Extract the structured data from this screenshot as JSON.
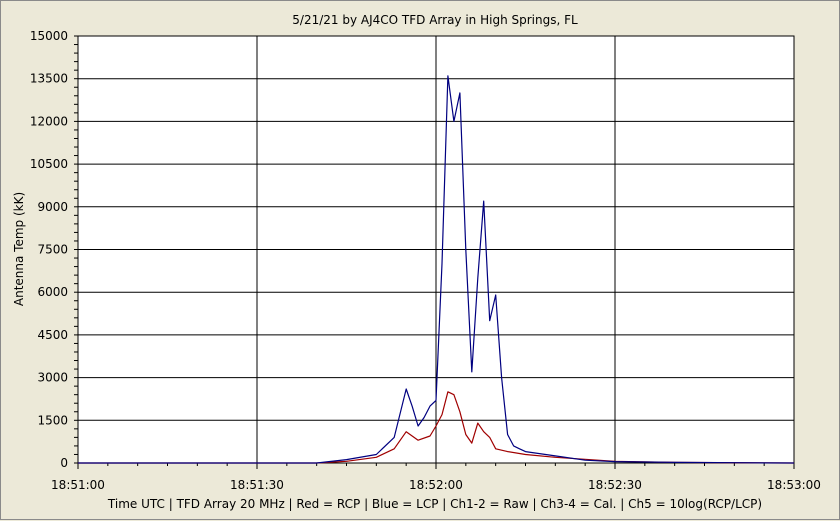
{
  "chart_data": {
    "type": "line",
    "title": "5/21/21  by  AJ4CO TFD Array  in  High Springs, FL",
    "ylabel": "Antenna Temp (kK)",
    "xlabel": "Time UTC | TFD Array 20 MHz | Red = RCP | Blue = LCP | Ch1-2 = Raw | Ch3-4 = Cal. | Ch5 = 10log(RCP/LCP)",
    "ylim": [
      0,
      15000
    ],
    "xlim": [
      "18:51:00",
      "18:53:00"
    ],
    "y_ticks": [
      "0",
      "1500",
      "3000",
      "4500",
      "6000",
      "7500",
      "9000",
      "10500",
      "12000",
      "13500",
      "15000"
    ],
    "x_ticks": [
      "18:51:00",
      "18:51:30",
      "18:52:00",
      "18:52:30",
      "18:53:00"
    ],
    "grid": true,
    "series": [
      {
        "color": "#000080",
        "x": [
          "18:51:00",
          "18:51:40",
          "18:51:45",
          "18:51:50",
          "18:51:53",
          "18:51:55",
          "18:51:56",
          "18:51:57",
          "18:51:58",
          "18:51:59",
          "18:52:00",
          "18:52:01",
          "18:52:02",
          "18:52:03",
          "18:52:04",
          "18:52:05",
          "18:52:06",
          "18:52:07",
          "18:52:08",
          "18:52:09",
          "18:52:10",
          "18:52:11",
          "18:52:12",
          "18:52:13",
          "18:52:14",
          "18:52:15",
          "18:52:20",
          "18:52:25",
          "18:52:30",
          "18:52:40",
          "18:52:50",
          "18:53:00"
        ],
        "values": [
          0,
          0,
          120,
          300,
          900,
          2600,
          2000,
          1300,
          1600,
          2000,
          2200,
          7000,
          13600,
          12000,
          13000,
          7500,
          3200,
          6500,
          9200,
          5000,
          5900,
          3000,
          1000,
          600,
          500,
          400,
          250,
          100,
          50,
          20,
          10,
          0
        ]
      },
      {
        "color": "#A00000",
        "x": [
          "18:51:00",
          "18:51:40",
          "18:51:45",
          "18:51:50",
          "18:51:53",
          "18:51:55",
          "18:51:57",
          "18:51:59",
          "18:52:00",
          "18:52:01",
          "18:52:02",
          "18:52:03",
          "18:52:04",
          "18:52:05",
          "18:52:06",
          "18:52:07",
          "18:52:08",
          "18:52:09",
          "18:52:10",
          "18:52:12",
          "18:52:15",
          "18:52:20",
          "18:52:30",
          "18:52:40",
          "18:53:00"
        ],
        "values": [
          0,
          0,
          60,
          200,
          500,
          1100,
          800,
          950,
          1300,
          1700,
          2500,
          2400,
          1800,
          1000,
          700,
          1400,
          1100,
          900,
          500,
          400,
          300,
          200,
          60,
          20,
          0
        ]
      }
    ]
  }
}
